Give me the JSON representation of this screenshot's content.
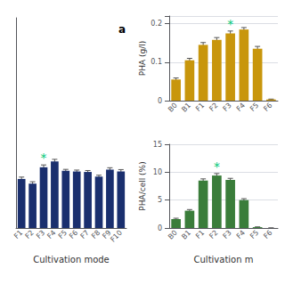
{
  "chart_data": [
    {
      "type": "bar",
      "title": "a",
      "categories": [
        "F1",
        "F2",
        "F3",
        "F4",
        "F5",
        "F6",
        "F7",
        "F8",
        "F9",
        "F10"
      ],
      "values": [
        2.1,
        1.9,
        2.6,
        2.85,
        2.45,
        2.42,
        2.4,
        2.2,
        2.5,
        2.42
      ],
      "errors": [
        0.08,
        0.08,
        0.1,
        0.09,
        0.06,
        0.06,
        0.06,
        0.06,
        0.08,
        0.08
      ],
      "color": "#1a2f6e",
      "xlabel": "Cultivation mode",
      "ylim": [
        0,
        9
      ],
      "grid": false,
      "tick_labels": "x",
      "annotations": [
        {
          "text": "*",
          "category": "F3",
          "color": "#00c878"
        }
      ]
    },
    {
      "type": "bar",
      "categories": [
        "B0",
        "B1",
        "F1",
        "F2",
        "F3",
        "F4",
        "F5",
        "F6"
      ],
      "values": [
        0.055,
        0.105,
        0.145,
        0.158,
        0.175,
        0.185,
        0.135,
        0.003
      ],
      "errors": [
        0.004,
        0.005,
        0.006,
        0.006,
        0.006,
        0.005,
        0.006,
        0.001
      ],
      "color": "#c8960c",
      "ylabel": "PHA (g/l)",
      "ylim": [
        0,
        0.22
      ],
      "yticks": [
        0,
        0.1,
        0.2
      ],
      "grid": true,
      "annotations": [
        {
          "text": "*",
          "category": "F3",
          "color": "#00c878"
        }
      ]
    },
    {
      "type": "bar",
      "categories": [
        "B0",
        "B1",
        "F1",
        "F2",
        "F3",
        "F4",
        "F5",
        "F6"
      ],
      "values": [
        1.6,
        3.1,
        8.5,
        9.4,
        8.6,
        5.0,
        0.15,
        0.0
      ],
      "errors": [
        0.15,
        0.2,
        0.3,
        0.35,
        0.3,
        0.25,
        0.05,
        0.01
      ],
      "color": "#3a7d3a",
      "ylabel": "PHA/cell (%)",
      "xlabel": "Cultivation m",
      "ylim": [
        0,
        15
      ],
      "yticks": [
        0,
        5,
        10,
        15
      ],
      "grid": true,
      "annotations": [
        {
          "text": "*",
          "category": "F2",
          "color": "#00c878"
        }
      ]
    }
  ]
}
